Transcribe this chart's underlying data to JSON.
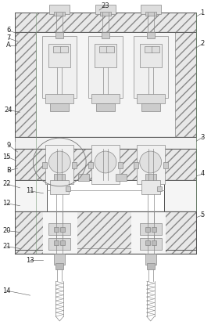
{
  "bg_color": "#ffffff",
  "lc": "#888888",
  "lc_dark": "#555555",
  "fig_width": 2.7,
  "fig_height": 4.15,
  "dpi": 100,
  "hatch_fc": "#e8e8e8",
  "inner_fc": "#f5f5f5",
  "green_line": "#66aa66",
  "red_line": "#cc6666"
}
